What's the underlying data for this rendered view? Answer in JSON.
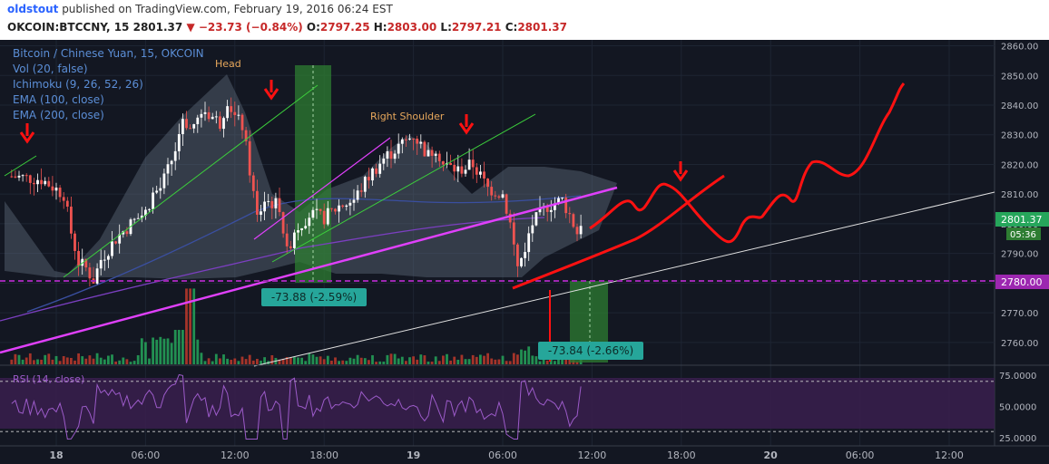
{
  "header": {
    "author": "oldstout",
    "published": "published on TradingView.com, February 19, 2016 06:24 EST",
    "symbol": "OKCOIN:BTCCNY, 15",
    "last": "2801.37",
    "change_arrow": "▼",
    "change": "−23.73 (−0.84%)",
    "o_label": "O:",
    "o_val": "2797.25",
    "h_label": "H:",
    "h_val": "2803.00",
    "l_label": "L:",
    "l_val": "2797.21",
    "c_label": "C:",
    "c_val": "2801.37"
  },
  "legend": [
    "Bitcoin / Chinese Yuan, 15, OKCOIN",
    "Vol (20, false)",
    "Ichimoku (9, 26, 52, 26)",
    "EMA (100, close)",
    "EMA (200, close)"
  ],
  "annotations": {
    "head": "Head",
    "right_shoulder": "Right Shoulder",
    "measure1": "-73.88 (-2.59%)",
    "measure2": "-73.84 (-2.66%)"
  },
  "price_tags": {
    "current": "2801.37",
    "countdown": "05:36",
    "neckline": "2780.00"
  },
  "rsi_label": "RSI (14, close)",
  "colors": {
    "background": "#131722",
    "up_candle": "#ffffff",
    "down_candle": "#ef5350",
    "up_volume": "#26a65b",
    "down_volume": "#c0392b",
    "neckline": "#9c27b0",
    "trendline_magenta": "#e040fb",
    "drawing_red": "#ff1111",
    "measure_green": "#2e7d32",
    "measure_label": "#26a69a",
    "rsi_fill": "#3a1f4d",
    "rsi_line": "#9c5bc9"
  },
  "chart_data": {
    "type": "candlestick",
    "title": "Bitcoin / Chinese Yuan, 15, OKCOIN",
    "ylim": [
      2752,
      2862
    ],
    "y_ticks": [
      2760,
      2770,
      2780,
      2790,
      2800,
      2810,
      2820,
      2830,
      2840,
      2850,
      2860
    ],
    "y_tick_labels": [
      "2760.00",
      "2770.00",
      "2780.00",
      "2790.00",
      "2800.00",
      "2810.00",
      "2820.00",
      "2830.00",
      "2840.00",
      "2850.00",
      "2860.00"
    ],
    "x_tick_labels": [
      "18",
      "06:00",
      "12:00",
      "18:00",
      "19",
      "06:00",
      "12:00",
      "18:00",
      "20",
      "06:00",
      "12:00"
    ],
    "x_tick_hours": [
      0,
      6,
      12,
      18,
      24,
      30,
      36,
      42,
      48,
      54,
      60
    ],
    "price_path": [
      [
        -3,
        2816
      ],
      [
        -1,
        2815
      ],
      [
        0.5,
        2810
      ],
      [
        1,
        2797
      ],
      [
        1.5,
        2787
      ],
      [
        2,
        2785
      ],
      [
        2.5,
        2781
      ],
      [
        3,
        2788
      ],
      [
        4,
        2795
      ],
      [
        5,
        2800
      ],
      [
        6,
        2804
      ],
      [
        6.5,
        2810
      ],
      [
        7,
        2812
      ],
      [
        7.5,
        2818
      ],
      [
        8,
        2825
      ],
      [
        8.5,
        2836
      ],
      [
        9,
        2832
      ],
      [
        10,
        2838
      ],
      [
        11,
        2834
      ],
      [
        11.5,
        2842
      ],
      [
        12,
        2836
      ],
      [
        12.5,
        2833
      ],
      [
        13,
        2818
      ],
      [
        13.5,
        2802
      ],
      [
        14,
        2808
      ],
      [
        15,
        2806
      ],
      [
        15.5,
        2790
      ],
      [
        16,
        2798
      ],
      [
        17,
        2803
      ],
      [
        18,
        2802
      ],
      [
        19,
        2806
      ],
      [
        20,
        2808
      ],
      [
        21,
        2816
      ],
      [
        22,
        2822
      ],
      [
        23,
        2826
      ],
      [
        24,
        2830
      ],
      [
        25,
        2823
      ],
      [
        25.5,
        2826
      ],
      [
        26,
        2820
      ],
      [
        27,
        2818
      ],
      [
        28,
        2820
      ],
      [
        29,
        2812
      ],
      [
        30,
        2810
      ],
      [
        30.5,
        2800
      ],
      [
        31,
        2785
      ],
      [
        31.5,
        2792
      ],
      [
        32,
        2800
      ],
      [
        33,
        2806
      ],
      [
        34,
        2808
      ],
      [
        34.5,
        2803
      ],
      [
        35,
        2797
      ],
      [
        35.3,
        2801.37
      ]
    ],
    "volume_ylim": [
      0,
      100
    ],
    "rsi_ylim": [
      20,
      80
    ],
    "rsi_ticks": [
      25,
      50,
      75
    ],
    "rsi_tick_labels": [
      "25.0000",
      "50.0000",
      "75.0000"
    ],
    "rsi_levels": [
      30,
      70
    ],
    "neckline": 2780
  }
}
